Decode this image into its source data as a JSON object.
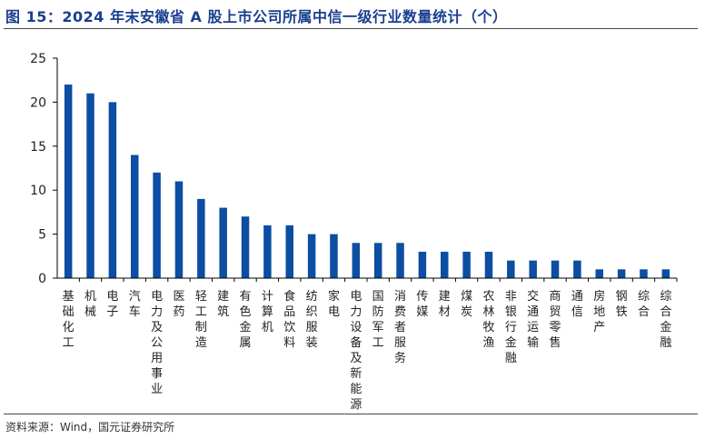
{
  "title": "图 15：2024 年末安徽省 A 股上市公司所属中信一级行业数量统计（个）",
  "source": "资料来源：Wind，国元证券研究所",
  "colors": {
    "bar": "#0b4ea2",
    "title": "#1a3f8f",
    "axis": "#000000"
  },
  "chart_data": {
    "type": "bar",
    "title": "图 15：2024 年末安徽省 A 股上市公司所属中信一级行业数量统计（个）",
    "xlabel": "",
    "ylabel": "",
    "ylim": [
      0,
      25
    ],
    "yticks": [
      0,
      5,
      10,
      15,
      20,
      25
    ],
    "grid": false,
    "categories": [
      "基础化工",
      "机械",
      "电子",
      "汽车",
      "电力及公用事业",
      "医药",
      "轻工制造",
      "建筑",
      "有色金属",
      "计算机",
      "食品饮料",
      "纺织服装",
      "家电",
      "电力设备及新能源",
      "国防军工",
      "消费者服务",
      "传媒",
      "建材",
      "煤炭",
      "农林牧渔",
      "非银行金融",
      "交通运输",
      "商贸零售",
      "通信",
      "房地产",
      "钢铁",
      "综合",
      "综合金融"
    ],
    "values": [
      22,
      21,
      20,
      14,
      12,
      11,
      9,
      8,
      7,
      6,
      6,
      5,
      5,
      4,
      4,
      4,
      3,
      3,
      3,
      3,
      2,
      2,
      2,
      2,
      1,
      1,
      1,
      1
    ]
  }
}
